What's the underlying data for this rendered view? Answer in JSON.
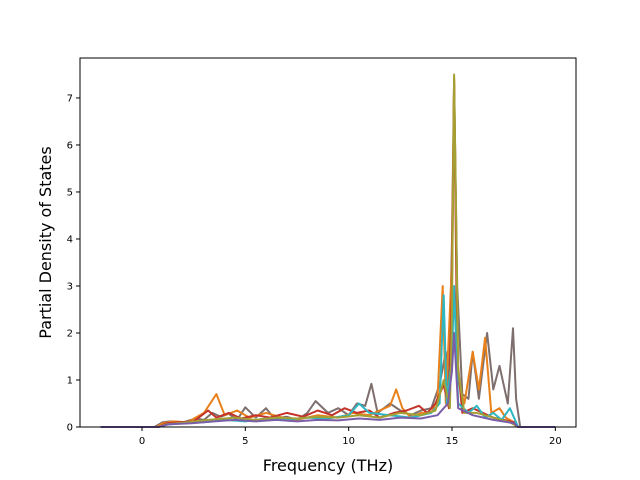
{
  "chart_data": {
    "type": "line",
    "title": "",
    "xlabel": "Frequency (THz)",
    "ylabel": "Partial Density of States",
    "xlim": [
      -3,
      21
    ],
    "ylim": [
      0,
      7.85
    ],
    "x_ticks": [
      0,
      5,
      10,
      15,
      20
    ],
    "y_ticks": [
      0,
      1,
      2,
      3,
      4,
      5,
      6,
      7
    ],
    "grid": false,
    "legend": "none",
    "series": [
      {
        "color": "#7f6e6e",
        "points": [
          [
            -2,
            0
          ],
          [
            0,
            0
          ],
          [
            0.6,
            0
          ],
          [
            1.0,
            0.1
          ],
          [
            1.4,
            0.12
          ],
          [
            2.0,
            0.1
          ],
          [
            2.6,
            0.18
          ],
          [
            3.0,
            0.15
          ],
          [
            3.4,
            0.3
          ],
          [
            3.8,
            0.22
          ],
          [
            4.2,
            0.28
          ],
          [
            4.6,
            0.15
          ],
          [
            5.0,
            0.42
          ],
          [
            5.5,
            0.2
          ],
          [
            6.0,
            0.4
          ],
          [
            6.4,
            0.18
          ],
          [
            7.0,
            0.22
          ],
          [
            7.5,
            0.15
          ],
          [
            8.0,
            0.3
          ],
          [
            8.4,
            0.55
          ],
          [
            9.0,
            0.3
          ],
          [
            9.5,
            0.4
          ],
          [
            10.0,
            0.25
          ],
          [
            10.4,
            0.5
          ],
          [
            10.8,
            0.45
          ],
          [
            11.1,
            0.92
          ],
          [
            11.4,
            0.3
          ],
          [
            12.0,
            0.5
          ],
          [
            12.5,
            0.35
          ],
          [
            13.0,
            0.25
          ],
          [
            13.5,
            0.35
          ],
          [
            14.0,
            0.4
          ],
          [
            14.4,
            0.9
          ],
          [
            14.7,
            1.6
          ],
          [
            14.85,
            0.8
          ],
          [
            15.0,
            4.0
          ],
          [
            15.1,
            7.4
          ],
          [
            15.25,
            3.0
          ],
          [
            15.5,
            0.7
          ],
          [
            15.8,
            0.6
          ],
          [
            16.0,
            1.6
          ],
          [
            16.3,
            0.6
          ],
          [
            16.7,
            2.0
          ],
          [
            17.0,
            0.8
          ],
          [
            17.3,
            1.3
          ],
          [
            17.7,
            0.5
          ],
          [
            17.95,
            2.1
          ],
          [
            18.1,
            0.6
          ],
          [
            18.3,
            0
          ],
          [
            20,
            0
          ]
        ]
      },
      {
        "color": "#e8801b",
        "points": [
          [
            -2,
            0
          ],
          [
            0.7,
            0
          ],
          [
            1.0,
            0.08
          ],
          [
            1.5,
            0.12
          ],
          [
            2.2,
            0.1
          ],
          [
            3.0,
            0.3
          ],
          [
            3.6,
            0.7
          ],
          [
            4.0,
            0.25
          ],
          [
            4.6,
            0.35
          ],
          [
            5.2,
            0.2
          ],
          [
            6.0,
            0.3
          ],
          [
            6.8,
            0.2
          ],
          [
            7.5,
            0.15
          ],
          [
            8.5,
            0.25
          ],
          [
            9.5,
            0.2
          ],
          [
            10.2,
            0.3
          ],
          [
            11.0,
            0.25
          ],
          [
            12.0,
            0.45
          ],
          [
            12.3,
            0.8
          ],
          [
            12.6,
            0.4
          ],
          [
            13.0,
            0.2
          ],
          [
            13.5,
            0.3
          ],
          [
            14.0,
            0.3
          ],
          [
            14.3,
            0.6
          ],
          [
            14.55,
            3.0
          ],
          [
            14.7,
            0.5
          ],
          [
            15.0,
            3.5
          ],
          [
            15.1,
            7.45
          ],
          [
            15.3,
            1.0
          ],
          [
            15.6,
            0.5
          ],
          [
            16.0,
            1.6
          ],
          [
            16.3,
            0.8
          ],
          [
            16.6,
            1.9
          ],
          [
            16.9,
            0.3
          ],
          [
            17.3,
            0.4
          ],
          [
            17.6,
            0.2
          ],
          [
            18.0,
            0.1
          ],
          [
            18.2,
            0
          ],
          [
            20,
            0
          ]
        ]
      },
      {
        "color": "#c4322a",
        "points": [
          [
            -2,
            0
          ],
          [
            0.8,
            0
          ],
          [
            1.2,
            0.08
          ],
          [
            1.8,
            0.1
          ],
          [
            2.5,
            0.12
          ],
          [
            3.2,
            0.35
          ],
          [
            3.6,
            0.2
          ],
          [
            4.2,
            0.3
          ],
          [
            4.8,
            0.18
          ],
          [
            5.5,
            0.25
          ],
          [
            6.2,
            0.2
          ],
          [
            7.0,
            0.3
          ],
          [
            7.8,
            0.22
          ],
          [
            8.5,
            0.35
          ],
          [
            9.2,
            0.25
          ],
          [
            9.8,
            0.4
          ],
          [
            10.4,
            0.3
          ],
          [
            11.0,
            0.35
          ],
          [
            11.5,
            0.2
          ],
          [
            12.2,
            0.3
          ],
          [
            12.8,
            0.35
          ],
          [
            13.4,
            0.45
          ],
          [
            13.8,
            0.3
          ],
          [
            14.2,
            0.5
          ],
          [
            14.6,
            0.9
          ],
          [
            14.85,
            0.4
          ],
          [
            15.0,
            3.0
          ],
          [
            15.1,
            7.3
          ],
          [
            15.25,
            1.5
          ],
          [
            15.5,
            0.3
          ],
          [
            16.0,
            0.4
          ],
          [
            16.5,
            0.3
          ],
          [
            17.0,
            0.2
          ],
          [
            17.5,
            0.15
          ],
          [
            18.0,
            0.1
          ],
          [
            18.2,
            0
          ],
          [
            20,
            0
          ]
        ]
      },
      {
        "color": "#2eb6c2",
        "points": [
          [
            -2,
            0
          ],
          [
            0.8,
            0
          ],
          [
            1.2,
            0.05
          ],
          [
            2.0,
            0.08
          ],
          [
            3.0,
            0.1
          ],
          [
            4.0,
            0.15
          ],
          [
            5.0,
            0.12
          ],
          [
            6.0,
            0.18
          ],
          [
            7.0,
            0.15
          ],
          [
            8.0,
            0.2
          ],
          [
            9.0,
            0.18
          ],
          [
            10.0,
            0.25
          ],
          [
            10.5,
            0.5
          ],
          [
            11.0,
            0.3
          ],
          [
            12.0,
            0.25
          ],
          [
            13.0,
            0.2
          ],
          [
            14.0,
            0.3
          ],
          [
            14.4,
            0.5
          ],
          [
            14.6,
            2.8
          ],
          [
            14.75,
            0.5
          ],
          [
            15.0,
            1.5
          ],
          [
            15.1,
            3.0
          ],
          [
            15.3,
            0.5
          ],
          [
            15.8,
            0.3
          ],
          [
            16.2,
            0.45
          ],
          [
            16.6,
            0.2
          ],
          [
            17.0,
            0.3
          ],
          [
            17.4,
            0.15
          ],
          [
            17.8,
            0.4
          ],
          [
            18.1,
            0.1
          ],
          [
            18.2,
            0
          ],
          [
            20,
            0
          ]
        ]
      },
      {
        "color": "#a4a033",
        "points": [
          [
            -2,
            0
          ],
          [
            0.8,
            0
          ],
          [
            1.2,
            0.06
          ],
          [
            2.2,
            0.1
          ],
          [
            3.2,
            0.15
          ],
          [
            4.5,
            0.2
          ],
          [
            5.5,
            0.15
          ],
          [
            6.5,
            0.2
          ],
          [
            7.5,
            0.18
          ],
          [
            8.5,
            0.22
          ],
          [
            9.5,
            0.2
          ],
          [
            10.5,
            0.25
          ],
          [
            11.5,
            0.2
          ],
          [
            12.5,
            0.3
          ],
          [
            13.5,
            0.25
          ],
          [
            14.2,
            0.35
          ],
          [
            14.6,
            1.0
          ],
          [
            14.9,
            0.4
          ],
          [
            15.0,
            2.5
          ],
          [
            15.1,
            7.5
          ],
          [
            15.3,
            1.2
          ],
          [
            15.6,
            0.3
          ],
          [
            16.2,
            0.3
          ],
          [
            17.0,
            0.2
          ],
          [
            17.8,
            0.1
          ],
          [
            18.2,
            0
          ],
          [
            20,
            0
          ]
        ]
      },
      {
        "color": "#7a5fa8",
        "points": [
          [
            -2,
            0
          ],
          [
            0.8,
            0
          ],
          [
            1.3,
            0.06
          ],
          [
            2.4,
            0.08
          ],
          [
            3.5,
            0.12
          ],
          [
            4.5,
            0.15
          ],
          [
            5.5,
            0.12
          ],
          [
            6.5,
            0.15
          ],
          [
            7.5,
            0.12
          ],
          [
            8.5,
            0.15
          ],
          [
            9.5,
            0.14
          ],
          [
            10.5,
            0.18
          ],
          [
            11.5,
            0.15
          ],
          [
            12.5,
            0.2
          ],
          [
            13.5,
            0.18
          ],
          [
            14.3,
            0.25
          ],
          [
            14.8,
            0.5
          ],
          [
            15.0,
            1.2
          ],
          [
            15.1,
            2.0
          ],
          [
            15.3,
            0.4
          ],
          [
            16.0,
            0.25
          ],
          [
            17.0,
            0.15
          ],
          [
            18.0,
            0.08
          ],
          [
            18.2,
            0
          ],
          [
            20,
            0
          ]
        ]
      }
    ]
  }
}
